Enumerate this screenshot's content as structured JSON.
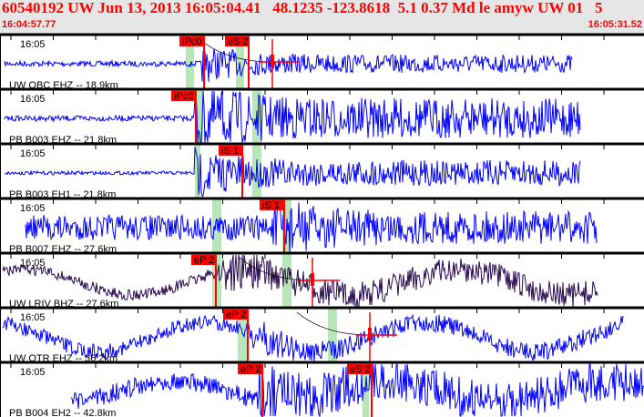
{
  "header": {
    "title": "60540192 UW Jun 13, 2013 16:05:04.41   48.1235 -123.8618  5.1 0.37 Md le amyw UW 01   5",
    "start_time": "16:04:57.77",
    "end_time": "16:05:31.52"
  },
  "colors": {
    "trace": "#0000ff",
    "trace_bb": "#2a0a50",
    "pick": "#ff0000",
    "window": "#b8e6b8"
  },
  "time_tick_label": "16:05",
  "traces": [
    {
      "station": "UW OBC EHZ -- 18.9km",
      "picks": [
        {
          "label": "iPc0"
        },
        {
          "label": "eS 2"
        }
      ]
    },
    {
      "station": "PB B003 EHZ -- 21.8km",
      "picks": [
        {
          "label": "iPc0"
        }
      ]
    },
    {
      "station": "PB B003 EH1 -- 21.8km",
      "picks": [
        {
          "label": "iS 1"
        }
      ]
    },
    {
      "station": "PB B007 EHZ -- 27.6km",
      "picks": [
        {
          "label": "iS 1"
        }
      ]
    },
    {
      "station": "UW LRIV BHZ -- 27.6km",
      "picks": [
        {
          "label": "eP 2"
        }
      ]
    },
    {
      "station": "UW OTR EHZ -- 36.2km",
      "picks": [
        {
          "label": "eP 2"
        }
      ]
    },
    {
      "station": "PB B004 EH2 -- 42.8km",
      "picks": [
        {
          "label": "eP 2"
        },
        {
          "label": "eS 2"
        }
      ]
    }
  ]
}
